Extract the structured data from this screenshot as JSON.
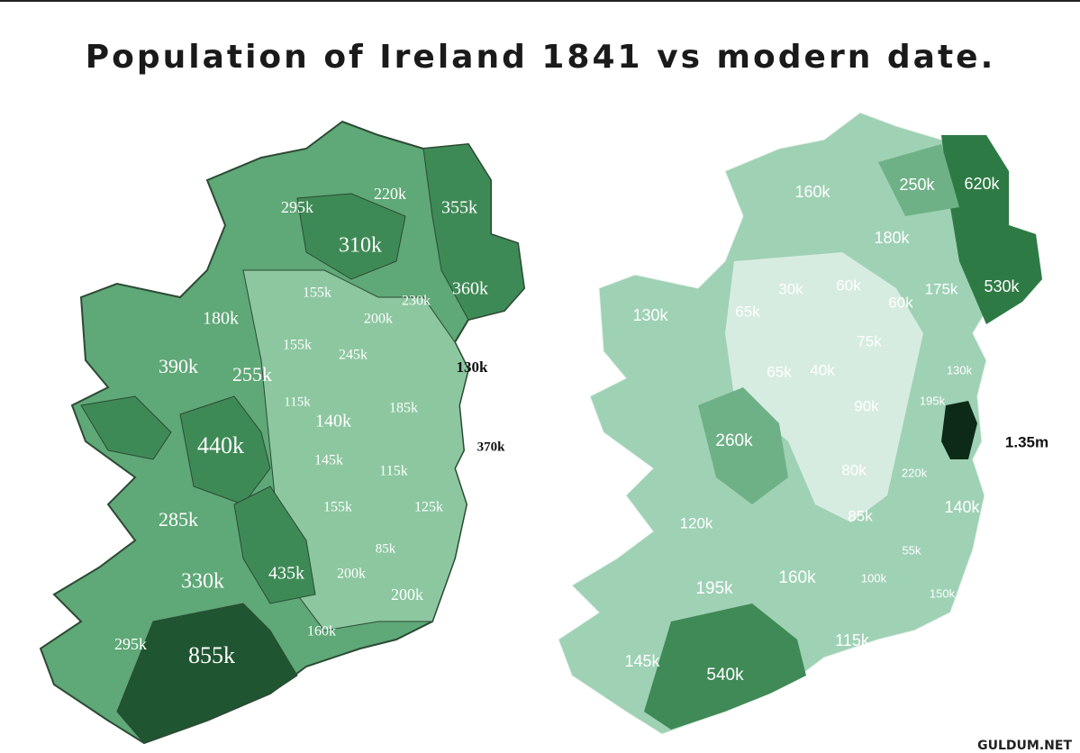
{
  "title": "Population of Ireland 1841 vs modern date.",
  "maps": [
    {
      "labels": [
        "295k",
        "220k",
        "355k",
        "310k",
        "155k",
        "230k",
        "360k",
        "180k",
        "200k",
        "155k",
        "245k",
        "390k",
        "255k",
        "130k",
        "115k",
        "185k",
        "140k",
        "440k",
        "370k",
        "145k",
        "115k",
        "155k",
        "125k",
        "285k",
        "85k",
        "330k",
        "435k",
        "200k",
        "200k",
        "160k",
        "295k",
        "855k"
      ]
    },
    {
      "labels": [
        "160k",
        "250k",
        "620k",
        "180k",
        "30k",
        "60k",
        "175k",
        "530k",
        "130k",
        "65k",
        "60k",
        "75k",
        "65k",
        "40k",
        "130k",
        "195k",
        "90k",
        "260k",
        "1.35m",
        "80k",
        "220k",
        "140k",
        "120k",
        "85k",
        "55k",
        "100k",
        "160k",
        "195k",
        "150k",
        "115k",
        "145k",
        "540k"
      ]
    }
  ],
  "watermark": "GULDUM.NET"
}
